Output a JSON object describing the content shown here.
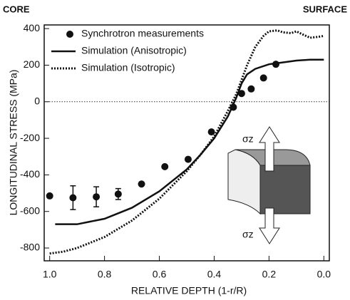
{
  "chart_data": {
    "type": "line",
    "corner_left": "CORE",
    "corner_right": "SURFACE",
    "xlabel": "RELATIVE DEPTH (1-r/R)",
    "ylabel": "LONGITUDINAL STRESS  (MPa)",
    "annotation_top": "σz",
    "annotation_bottom": "σz",
    "xlim": [
      1.02,
      -0.02
    ],
    "ylim": [
      -870,
      420
    ],
    "xticks": [
      {
        "value": 1,
        "label": "1.0"
      },
      0.8,
      0.6,
      0.4,
      0.2,
      {
        "value": 0,
        "label": "0.0"
      }
    ],
    "yticks": [
      400,
      200,
      0,
      -200,
      -400,
      -600,
      -800
    ],
    "zero_line": true,
    "legend": "upper left",
    "series": [
      {
        "name": "Synchrotron measurements",
        "color": "#111111",
        "style": "markers",
        "x": [
          1.0,
          0.915,
          0.83,
          0.75,
          0.665,
          0.58,
          0.495,
          0.41,
          0.33,
          0.3,
          0.265,
          0.22,
          0.175
        ],
        "values": [
          -515,
          -525,
          -520,
          -505,
          -450,
          -355,
          -315,
          -165,
          -30,
          45,
          70,
          130,
          205
        ],
        "errors": [
          null,
          65,
          55,
          30,
          null,
          null,
          null,
          null,
          null,
          null,
          null,
          null,
          null
        ]
      },
      {
        "name": "Simulation (Anisotropic)",
        "color": "#111111",
        "style": "solid",
        "x": [
          0.98,
          0.9,
          0.8,
          0.7,
          0.6,
          0.5,
          0.45,
          0.4,
          0.35,
          0.32,
          0.3,
          0.28,
          0.25,
          0.2,
          0.15,
          0.1,
          0.05,
          0.0
        ],
        "values": [
          -670,
          -670,
          -640,
          -580,
          -490,
          -370,
          -290,
          -200,
          -80,
          20,
          100,
          150,
          180,
          205,
          215,
          225,
          230,
          230
        ]
      },
      {
        "name": "Simulation (Isotropic)",
        "color": "#111111",
        "style": "dotted",
        "x": [
          1.0,
          0.95,
          0.9,
          0.8,
          0.7,
          0.6,
          0.5,
          0.45,
          0.4,
          0.35,
          0.32,
          0.3,
          0.28,
          0.25,
          0.22,
          0.2,
          0.17,
          0.15,
          0.12,
          0.1,
          0.08,
          0.05,
          0.02,
          0.0
        ],
        "values": [
          -830,
          -820,
          -800,
          -740,
          -650,
          -530,
          -380,
          -290,
          -190,
          -50,
          40,
          120,
          200,
          300,
          360,
          385,
          390,
          380,
          375,
          385,
          370,
          350,
          355,
          360
        ]
      }
    ]
  }
}
